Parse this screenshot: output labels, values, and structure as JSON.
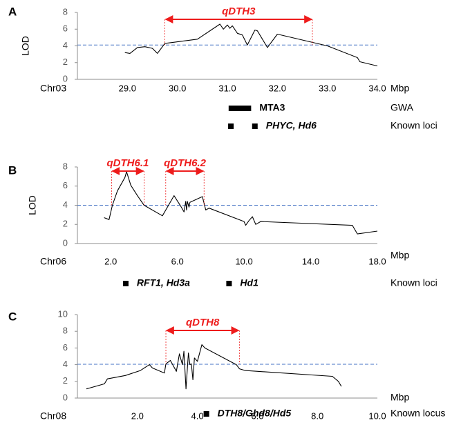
{
  "figure": {
    "panels": [
      {
        "letter": "A",
        "chrom": "Chr03",
        "unit": "Mbp",
        "ylabel": "LOD",
        "qtls": [
          {
            "name": "qDTH3",
            "start": 29.75,
            "end": 32.7
          }
        ],
        "features": [
          {
            "kind": "bar",
            "label": "MTA3",
            "italic": false,
            "pos": 31.25,
            "length": 0.45,
            "row": 0
          },
          {
            "kind": "mark",
            "label": "PHYC, Hd6",
            "italic": true,
            "positions": [
              31.07,
              31.55
            ],
            "row": 1
          }
        ],
        "row_labels": [
          "GWA",
          "Known loci"
        ]
      },
      {
        "letter": "B",
        "chrom": "Chr06",
        "unit": "Mbp",
        "ylabel": "LOD",
        "qtls": [
          {
            "name": "qDTH6.1",
            "start": 2.05,
            "end": 4.0
          },
          {
            "name": "qDTH6.2",
            "start": 5.3,
            "end": 7.6
          }
        ],
        "features": [
          {
            "kind": "mark",
            "label": "RFT1, Hd3a",
            "italic": true,
            "positions": [
              2.9
            ],
            "row": 0
          },
          {
            "kind": "mark",
            "label": "Hd1",
            "italic": true,
            "positions": [
              9.1
            ],
            "row": 0
          }
        ],
        "row_labels": [
          "Known loci"
        ]
      },
      {
        "letter": "C",
        "chrom": "Chr08",
        "unit": "Mbp",
        "ylabel": "",
        "qtls": [
          {
            "name": "qDTH8",
            "start": 2.95,
            "end": 5.4
          }
        ],
        "features": [
          {
            "kind": "mark",
            "label": "DTH8/Ghd8/Hd5",
            "italic": true,
            "positions": [
              4.3
            ],
            "row": 0
          }
        ],
        "row_labels": [
          "Known locus"
        ]
      }
    ]
  },
  "chart_data": [
    {
      "type": "line",
      "title": "",
      "xlabel": "Mbp",
      "ylabel": "LOD",
      "xlim": [
        28.0,
        34.0
      ],
      "ylim": [
        0,
        8
      ],
      "xticks": [
        "29.0",
        "30.0",
        "31.0",
        "32.0",
        "33.0",
        "34.0"
      ],
      "yticks": [
        "0",
        "2",
        "4",
        "6",
        "8"
      ],
      "threshold": 4.1,
      "series": [
        {
          "name": "LOD",
          "x": [
            28.95,
            29.05,
            29.2,
            29.35,
            29.5,
            29.6,
            29.75,
            30.4,
            30.85,
            30.92,
            31.0,
            31.05,
            31.1,
            31.2,
            31.3,
            31.4,
            31.55,
            31.6,
            31.8,
            32.0,
            33.0,
            33.6,
            33.65,
            34.0
          ],
          "y": [
            3.2,
            3.1,
            3.8,
            3.9,
            3.7,
            3.1,
            4.3,
            4.8,
            6.6,
            6.0,
            6.5,
            6.1,
            6.4,
            5.5,
            5.3,
            4.1,
            5.9,
            5.8,
            3.8,
            5.4,
            4.0,
            2.6,
            2.1,
            1.6
          ]
        }
      ]
    },
    {
      "type": "line",
      "title": "",
      "xlabel": "Mbp",
      "ylabel": "LOD",
      "xlim": [
        0,
        18.0
      ],
      "ylim": [
        0,
        8
      ],
      "xticks": [
        "2.0",
        "6.0",
        "10.0",
        "14.0",
        "18.0"
      ],
      "yticks": [
        "0",
        "2",
        "4",
        "6",
        "8"
      ],
      "threshold": 4.0,
      "series": [
        {
          "name": "LOD",
          "x": [
            1.6,
            1.9,
            2.1,
            2.4,
            2.85,
            2.95,
            3.2,
            3.6,
            4.0,
            5.1,
            5.8,
            6.2,
            6.4,
            6.5,
            6.55,
            6.6,
            6.7,
            6.75,
            7.5,
            7.7,
            7.9,
            10.0,
            10.1,
            10.3,
            10.5,
            10.7,
            11.0,
            16.5,
            16.8,
            18.0
          ],
          "y": [
            2.7,
            2.5,
            4.0,
            5.5,
            6.9,
            7.5,
            6.1,
            5.0,
            4.0,
            2.9,
            5.0,
            3.9,
            3.3,
            4.4,
            3.5,
            4.4,
            3.8,
            4.3,
            4.9,
            3.5,
            3.7,
            2.3,
            1.9,
            2.4,
            2.8,
            2.0,
            2.3,
            1.9,
            1.0,
            1.3
          ]
        }
      ]
    },
    {
      "type": "line",
      "title": "",
      "xlabel": "Mbp",
      "ylabel": "",
      "xlim": [
        0,
        10.0
      ],
      "ylim": [
        0,
        10
      ],
      "xticks": [
        "2.0",
        "4.0",
        "6.0",
        "8.0",
        "10.0"
      ],
      "yticks": [
        "0",
        "2",
        "4",
        "6",
        "8",
        "10"
      ],
      "threshold": 4.05,
      "series": [
        {
          "name": "LOD",
          "x": [
            0.3,
            0.9,
            1.0,
            1.6,
            2.1,
            2.4,
            2.5,
            2.9,
            2.95,
            3.1,
            3.3,
            3.4,
            3.5,
            3.55,
            3.62,
            3.7,
            3.75,
            3.8,
            3.85,
            3.9,
            4.0,
            4.15,
            4.25,
            5.3,
            5.4,
            5.6,
            8.5,
            8.7,
            8.8
          ],
          "y": [
            1.1,
            1.7,
            2.3,
            2.7,
            3.3,
            4.0,
            3.6,
            3.0,
            4.1,
            4.5,
            3.2,
            5.3,
            4.0,
            5.6,
            1.1,
            5.4,
            4.0,
            4.1,
            2.2,
            4.8,
            4.4,
            6.4,
            6.0,
            4.0,
            3.5,
            3.3,
            2.6,
            2.0,
            1.4
          ]
        }
      ]
    }
  ]
}
